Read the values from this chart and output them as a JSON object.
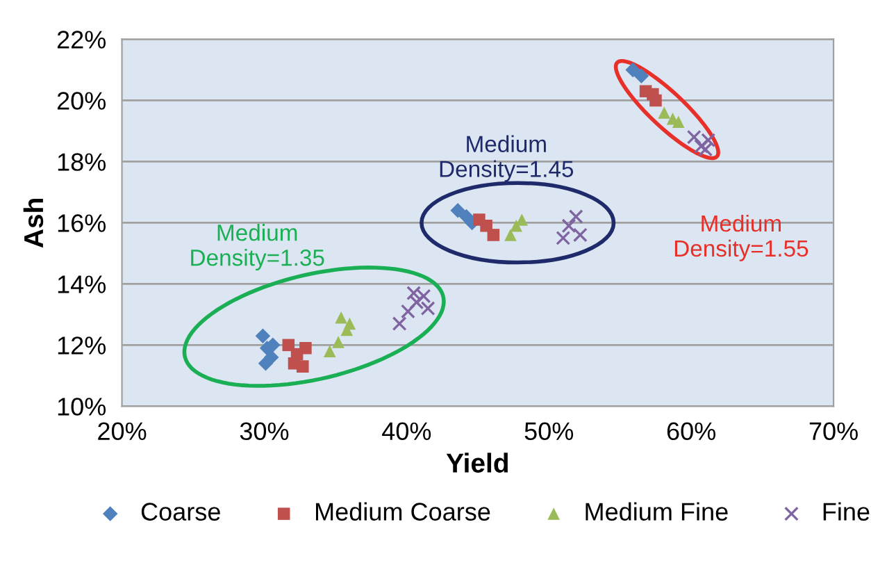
{
  "chart_data": {
    "type": "scatter",
    "xlabel": "Yield",
    "ylabel": "Ash",
    "xlim": [
      20,
      70
    ],
    "ylim": [
      10,
      22
    ],
    "xticks": [
      {
        "value": 20,
        "label": "20%"
      },
      {
        "value": 30,
        "label": "30%"
      },
      {
        "value": 40,
        "label": "40%"
      },
      {
        "value": 50,
        "label": "50%"
      },
      {
        "value": 60,
        "label": "60%"
      },
      {
        "value": 70,
        "label": "70%"
      }
    ],
    "yticks": [
      {
        "value": 10,
        "label": "10%"
      },
      {
        "value": 12,
        "label": "12%"
      },
      {
        "value": 14,
        "label": "14%"
      },
      {
        "value": 16,
        "label": "16%"
      },
      {
        "value": 18,
        "label": "18%"
      },
      {
        "value": 20,
        "label": "20%"
      },
      {
        "value": 22,
        "label": "22%"
      }
    ],
    "grid": "y",
    "legend": "bottom",
    "series": [
      {
        "name": "Coarse",
        "color": "#4f81bd",
        "marker": "diamond",
        "x": [
          29.9,
          30.2,
          30.5,
          30.1,
          30.6,
          43.6,
          44.2,
          44.6,
          55.9,
          56.5
        ],
        "values": [
          12.3,
          11.9,
          11.6,
          11.4,
          12.0,
          16.4,
          16.2,
          16.0,
          21.0,
          20.8
        ]
      },
      {
        "name": "Medium Coarse",
        "color": "#c0504d",
        "marker": "square",
        "x": [
          31.7,
          32.3,
          32.9,
          32.1,
          32.7,
          45.1,
          45.6,
          46.1,
          56.8,
          57.3,
          57.5
        ],
        "values": [
          12.0,
          11.7,
          11.9,
          11.4,
          11.3,
          16.1,
          15.9,
          15.6,
          20.3,
          20.2,
          20.0
        ]
      },
      {
        "name": "Medium Fine",
        "color": "#9bbb59",
        "marker": "triangle",
        "x": [
          34.6,
          35.2,
          35.8,
          36.0,
          35.4,
          47.3,
          47.7,
          48.1,
          58.1,
          58.7,
          59.1
        ],
        "values": [
          11.8,
          12.1,
          12.5,
          12.7,
          12.9,
          15.6,
          15.9,
          16.1,
          19.6,
          19.4,
          19.3
        ]
      },
      {
        "name": "Fine",
        "color": "#8064a2",
        "marker": "cross",
        "x": [
          39.5,
          40.1,
          40.7,
          41.2,
          40.5,
          41.5,
          51.0,
          51.4,
          51.9,
          52.2,
          60.2,
          60.7,
          61.2,
          61.0
        ],
        "values": [
          12.7,
          13.1,
          13.4,
          13.6,
          13.7,
          13.2,
          15.5,
          15.9,
          16.2,
          15.6,
          18.8,
          18.5,
          18.7,
          18.4
        ]
      }
    ],
    "annotations": [
      "Medium\nDensity=1.35",
      "Medium\nDensity=1.45",
      "Medium\nDensity=1.55"
    ]
  }
}
